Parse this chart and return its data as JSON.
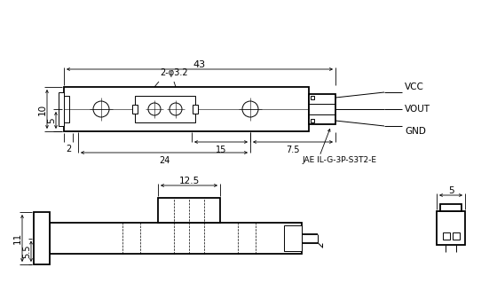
{
  "bg_color": "#ffffff",
  "line_color": "#000000",
  "thin_lw": 0.7,
  "thick_lw": 1.3,
  "dim_lw": 0.6,
  "annotations": {
    "dim_43": "43",
    "dim_phi32": "2-φ3.2",
    "dim_10": "10",
    "dim_5": "5",
    "dim_2": "2",
    "dim_15": "15",
    "dim_75": "7.5",
    "dim_24": "24",
    "vcc": "VCC",
    "vout": "VOUT",
    "gnd": "GND",
    "connector": "JAE IL-G-3P-S3T2-E",
    "dim_125": "12.5",
    "dim_11": "11",
    "dim_55": "5.5",
    "dim_5b": "5"
  }
}
